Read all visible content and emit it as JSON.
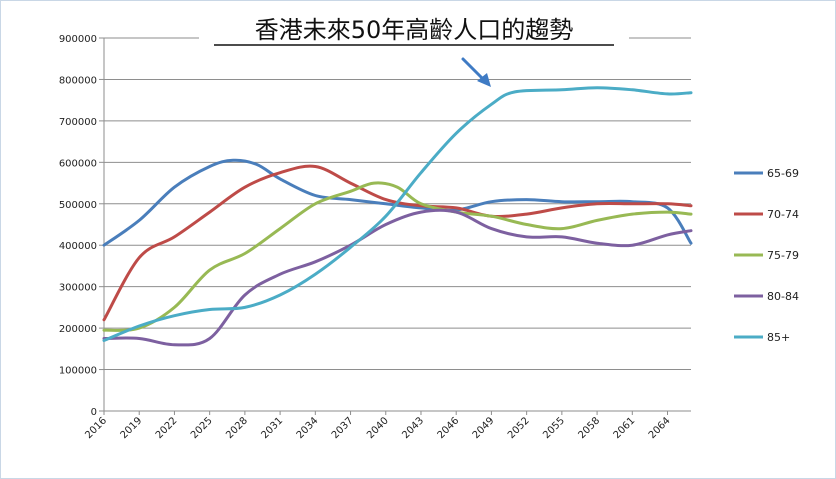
{
  "chart_data": {
    "type": "line",
    "title": "香港未來50年高齡人口的趨勢",
    "xlabel": "",
    "ylabel": "",
    "ylim": [
      0,
      900000
    ],
    "yticks": [
      0,
      100000,
      200000,
      300000,
      400000,
      500000,
      600000,
      700000,
      800000,
      900000
    ],
    "ytick_labels": [
      "0",
      "100000",
      "200000",
      "300000",
      "400000",
      "500000",
      "600000",
      "700000",
      "800000",
      "900000"
    ],
    "x_labels": [
      "2016",
      "2019",
      "2022",
      "2025",
      "2028",
      "2031",
      "2034",
      "2037",
      "2040",
      "2043",
      "2046",
      "2049",
      "2052",
      "2055",
      "2058",
      "2061",
      "2064"
    ],
    "xlim": [
      2016,
      2066
    ],
    "grid": "horizontal",
    "legend_position": "right",
    "series": [
      {
        "name": "65-69",
        "color": "#4a7ebb",
        "x": [
          2016,
          2019,
          2022,
          2025,
          2027,
          2029,
          2031,
          2034,
          2037,
          2040,
          2043,
          2046,
          2049,
          2052,
          2055,
          2058,
          2061,
          2064,
          2066
        ],
        "y": [
          400000,
          460000,
          540000,
          590000,
          605000,
          595000,
          560000,
          520000,
          510000,
          500000,
          490000,
          485000,
          505000,
          510000,
          505000,
          505000,
          505000,
          490000,
          405000
        ]
      },
      {
        "name": "70-74",
        "color": "#be4b48",
        "x": [
          2016,
          2019,
          2022,
          2025,
          2028,
          2031,
          2034,
          2037,
          2040,
          2043,
          2046,
          2049,
          2052,
          2055,
          2058,
          2061,
          2064,
          2066
        ],
        "y": [
          220000,
          370000,
          420000,
          480000,
          540000,
          575000,
          590000,
          550000,
          510000,
          495000,
          490000,
          470000,
          475000,
          490000,
          500000,
          500000,
          500000,
          495000
        ]
      },
      {
        "name": "75-79",
        "color": "#98b954",
        "x": [
          2016,
          2019,
          2022,
          2025,
          2028,
          2031,
          2034,
          2037,
          2039,
          2041,
          2043,
          2046,
          2049,
          2052,
          2055,
          2058,
          2061,
          2064,
          2066
        ],
        "y": [
          195000,
          200000,
          250000,
          340000,
          380000,
          440000,
          500000,
          530000,
          550000,
          540000,
          500000,
          480000,
          470000,
          450000,
          440000,
          460000,
          475000,
          480000,
          475000
        ]
      },
      {
        "name": "80-84",
        "color": "#7d60a0",
        "x": [
          2016,
          2019,
          2022,
          2025,
          2028,
          2031,
          2034,
          2037,
          2040,
          2043,
          2046,
          2049,
          2052,
          2055,
          2058,
          2061,
          2064,
          2066
        ],
        "y": [
          175000,
          175000,
          160000,
          175000,
          280000,
          330000,
          360000,
          400000,
          450000,
          480000,
          480000,
          440000,
          420000,
          420000,
          405000,
          400000,
          425000,
          435000
        ]
      },
      {
        "name": "85+",
        "color": "#4bacc6",
        "x": [
          2016,
          2019,
          2022,
          2025,
          2028,
          2031,
          2034,
          2037,
          2040,
          2043,
          2046,
          2049,
          2051,
          2055,
          2058,
          2061,
          2064,
          2066
        ],
        "y": [
          170000,
          205000,
          230000,
          245000,
          250000,
          280000,
          330000,
          395000,
          470000,
          575000,
          670000,
          740000,
          770000,
          775000,
          780000,
          775000,
          765000,
          768000
        ]
      }
    ]
  },
  "colors": {
    "grid": "#8e8e8e",
    "axis": "#8e8e8e",
    "arrow": "#3f7bc4",
    "frame": "#c9d7e6"
  }
}
